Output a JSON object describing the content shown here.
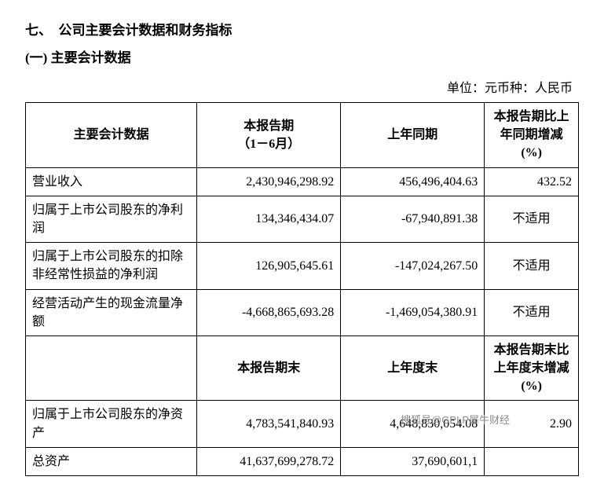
{
  "heading": "七、　公司主要会计数据和财务指标",
  "subheading": "(一) 主要会计数据",
  "unit_label": "单位：元币种：人民币",
  "headers": {
    "metric": "主要会计数据",
    "current": "本报告期",
    "current_sub": "（1－6月）",
    "prior": "上年同期",
    "change": "本报告期比上年同期增减(%)"
  },
  "rows": [
    {
      "label": "营业收入",
      "current": "2,430,946,298.92",
      "prior": "456,496,404.63",
      "change": "432.52"
    },
    {
      "label": "归属于上市公司股东的净利润",
      "current": "134,346,434.07",
      "prior": "-67,940,891.38",
      "change": "不适用"
    },
    {
      "label": "归属于上市公司股东的扣除非经常性损益的净利润",
      "current": "126,905,645.61",
      "prior": "-147,024,267.50",
      "change": "不适用"
    },
    {
      "label": "经营活动产生的现金流量净额",
      "current": "-4,668,865,693.28",
      "prior": "-1,469,054,380.91",
      "change": "不适用"
    }
  ],
  "headers2": {
    "current_end": "本报告期末",
    "prior_end": "上年度末",
    "change_end": "本报告期末比上年度末增减(%)"
  },
  "rows2": [
    {
      "label": "归属于上市公司股东的净资产",
      "current": "4,783,541,840.93",
      "prior": "4,648,830,054.08",
      "change": "2.90"
    },
    {
      "label": "总资产",
      "current": "41,637,699,278.72",
      "prior": "37,690,601,1",
      "change": ""
    }
  ],
  "watermark": "搜狐号@GPLP犀牛财经",
  "colors": {
    "text": "#000000",
    "background": "#ffffff",
    "border": "#000000",
    "watermark": "#8a8a8a"
  },
  "typography": {
    "body_fontsize": 16,
    "heading_fontsize": 17,
    "font_family": "SimSun"
  },
  "table_layout": {
    "col_widths_pct": [
      31,
      26,
      26,
      17
    ]
  }
}
